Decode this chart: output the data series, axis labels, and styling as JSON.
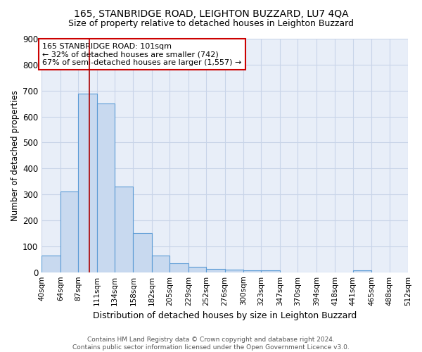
{
  "title": "165, STANBRIDGE ROAD, LEIGHTON BUZZARD, LU7 4QA",
  "subtitle": "Size of property relative to detached houses in Leighton Buzzard",
  "xlabel": "Distribution of detached houses by size in Leighton Buzzard",
  "ylabel": "Number of detached properties",
  "footer_line1": "Contains HM Land Registry data © Crown copyright and database right 2024.",
  "footer_line2": "Contains public sector information licensed under the Open Government Licence v3.0.",
  "bar_color": "#c8d9ef",
  "bar_edge_color": "#5b9bd5",
  "grid_color": "#c8d4e8",
  "plot_bg_color": "#e8eef8",
  "figure_bg_color": "#ffffff",
  "vline_color": "#aa0000",
  "annotation_text": "165 STANBRIDGE ROAD: 101sqm\n← 32% of detached houses are smaller (742)\n67% of semi-detached houses are larger (1,557) →",
  "annotation_box_color": "#cc0000",
  "vline_x": 101,
  "bins": [
    40,
    64,
    87,
    111,
    134,
    158,
    182,
    205,
    229,
    252,
    276,
    300,
    323,
    347,
    370,
    394,
    418,
    441,
    465,
    488,
    512
  ],
  "counts": [
    65,
    310,
    688,
    650,
    330,
    150,
    65,
    35,
    20,
    12,
    10,
    8,
    6,
    0,
    0,
    0,
    0,
    8,
    0,
    0
  ],
  "ylim": [
    0,
    900
  ],
  "yticks": [
    0,
    100,
    200,
    300,
    400,
    500,
    600,
    700,
    800,
    900
  ]
}
